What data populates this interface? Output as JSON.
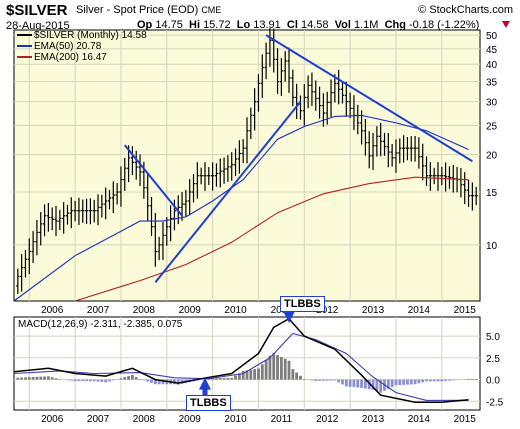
{
  "header": {
    "symbol": "$SILVER",
    "description": "Silver - Spot Price (EOD)",
    "exchange": "CME",
    "watermark": "© StockCharts.com",
    "date": "28-Aug-2015",
    "open_label": "Op",
    "open": "14.75",
    "high_label": "Hi",
    "high": "15.72",
    "low_label": "Lo",
    "low": "13.91",
    "close_label": "Cl",
    "close": "14.58",
    "volume_label": "Vol",
    "volume": "1.1M",
    "change_label": "Chg",
    "change": "-0.18 (-1.22%)",
    "change_arrow": "down-arrow-icon"
  },
  "colors": {
    "background_main": "#fbfbd9",
    "background_macd": "#ffffff",
    "grid": "#d4d4bd",
    "price_bars": "#000000",
    "ema50": "#1a2fbd",
    "ema200": "#b22222",
    "trendlines": "#1f3fd1",
    "macd_line": "#000000",
    "signal_line": "#3b3fb0",
    "histogram": "#8b8fcf",
    "histogram_positive": "#7d7d7d"
  },
  "chart_data": [
    {
      "type": "ohlc",
      "title": "$SILVER Silver - Spot Price (EOD) CME",
      "period": "Monthly",
      "scale": "log",
      "ylim": [
        6.5,
        52
      ],
      "y_ticks": [
        10,
        15,
        20,
        25,
        30,
        35,
        40,
        45,
        50
      ],
      "x_ticks": [
        "2006",
        "2007",
        "2008",
        "2009",
        "2010",
        "2011",
        "2012",
        "2013",
        "2014",
        "2015"
      ],
      "grid": true,
      "legend": [
        {
          "name": "$SILVER (Monthly) 14.58",
          "color": "#000000"
        },
        {
          "name": "EMA(50) 20.78",
          "color": "#1a2fbd"
        },
        {
          "name": "EMA(200) 16.47",
          "color": "#b22222"
        }
      ],
      "close_anchors": [
        [
          "2005-09",
          7.3
        ],
        [
          "2006-01",
          9.5
        ],
        [
          "2006-05",
          12.5
        ],
        [
          "2006-08",
          12.0
        ],
        [
          "2006-12",
          13.0
        ],
        [
          "2007-06",
          13.0
        ],
        [
          "2007-12",
          15.0
        ],
        [
          "2008-03",
          19.5
        ],
        [
          "2008-06",
          17.5
        ],
        [
          "2008-10",
          9.5
        ],
        [
          "2008-11",
          10.0
        ],
        [
          "2009-03",
          13.0
        ],
        [
          "2009-06",
          14.0
        ],
        [
          "2009-09",
          17.0
        ],
        [
          "2010-01",
          17.0
        ],
        [
          "2010-06",
          18.5
        ],
        [
          "2010-09",
          21.0
        ],
        [
          "2010-12",
          30.0
        ],
        [
          "2011-04",
          48.0
        ],
        [
          "2011-06",
          35.0
        ],
        [
          "2011-08",
          41.0
        ],
        [
          "2011-10",
          31.0
        ],
        [
          "2011-12",
          28.0
        ],
        [
          "2012-02",
          34.0
        ],
        [
          "2012-06",
          27.5
        ],
        [
          "2012-09",
          34.5
        ],
        [
          "2012-12",
          30.0
        ],
        [
          "2013-04",
          24.0
        ],
        [
          "2013-06",
          19.8
        ],
        [
          "2013-08",
          23.0
        ],
        [
          "2013-12",
          19.5
        ],
        [
          "2014-02",
          21.0
        ],
        [
          "2014-06",
          21.0
        ],
        [
          "2014-09",
          17.0
        ],
        [
          "2015-01",
          17.0
        ],
        [
          "2015-05",
          16.5
        ],
        [
          "2015-08",
          14.58
        ]
      ],
      "ema50_anchors": [
        [
          "2005-09",
          6.5
        ],
        [
          "2007-01",
          9.2
        ],
        [
          "2008-06",
          12.0
        ],
        [
          "2008-12",
          12.0
        ],
        [
          "2009-06",
          12.4
        ],
        [
          "2010-01",
          14.0
        ],
        [
          "2010-09",
          16.5
        ],
        [
          "2011-06",
          22.5
        ],
        [
          "2012-01",
          24.8
        ],
        [
          "2012-09",
          26.8
        ],
        [
          "2013-04",
          27.0
        ],
        [
          "2014-01",
          25.5
        ],
        [
          "2014-09",
          24.0
        ],
        [
          "2015-08",
          20.78
        ]
      ],
      "ema200_anchors": [
        [
          "2007-01",
          6.5
        ],
        [
          "2008-06",
          7.6
        ],
        [
          "2009-06",
          8.6
        ],
        [
          "2010-06",
          10.2
        ],
        [
          "2011-06",
          12.8
        ],
        [
          "2012-06",
          14.8
        ],
        [
          "2013-06",
          16.0
        ],
        [
          "2014-06",
          16.8
        ],
        [
          "2015-08",
          16.47
        ]
      ],
      "trendlines": [
        {
          "from": [
            "2008-02",
            21.5
          ],
          "to": [
            "2009-05",
            12.5
          ]
        },
        {
          "from": [
            "2008-10",
            7.5
          ],
          "to": [
            "2011-12",
            30.0
          ]
        },
        {
          "from": [
            "2011-03",
            50.0
          ],
          "to": [
            "2015-09",
            19.0
          ]
        }
      ]
    },
    {
      "type": "macd",
      "title": "MACD(12,26,9)",
      "values_label": "-2.311, -2.385, 0.075",
      "parameters": [
        12,
        26,
        9
      ],
      "macd": -2.311,
      "signal": -2.385,
      "histogram": 0.075,
      "ylim": [
        -3.5,
        7.2
      ],
      "y_ticks": [
        -2.5,
        0.0,
        2.5,
        5.0
      ],
      "y_tick_labels": [
        "-2.5",
        "0.0",
        "2.5",
        "5.0"
      ],
      "x_ticks": [
        "2006",
        "2007",
        "2008",
        "2009",
        "2010",
        "2011",
        "2012",
        "2013",
        "2014",
        "2015"
      ],
      "macd_anchors": [
        [
          "2005-09",
          0.9
        ],
        [
          "2006-06",
          1.3
        ],
        [
          "2007-01",
          0.7
        ],
        [
          "2007-09",
          0.4
        ],
        [
          "2008-04",
          1.3
        ],
        [
          "2008-10",
          0.0
        ],
        [
          "2009-04",
          -0.4
        ],
        [
          "2009-10",
          0.1
        ],
        [
          "2010-06",
          0.7
        ],
        [
          "2011-01",
          3.0
        ],
        [
          "2011-05",
          6.0
        ],
        [
          "2011-09",
          7.0
        ],
        [
          "2012-01",
          5.0
        ],
        [
          "2012-09",
          3.5
        ],
        [
          "2013-04",
          0.5
        ],
        [
          "2013-09",
          -1.8
        ],
        [
          "2014-06",
          -2.6
        ],
        [
          "2015-01",
          -2.6
        ],
        [
          "2015-08",
          -2.311
        ]
      ],
      "signal_anchors": [
        [
          "2005-09",
          0.7
        ],
        [
          "2006-09",
          1.0
        ],
        [
          "2007-06",
          0.7
        ],
        [
          "2008-06",
          0.8
        ],
        [
          "2009-03",
          0.2
        ],
        [
          "2009-12",
          0.1
        ],
        [
          "2010-09",
          0.7
        ],
        [
          "2011-04",
          2.5
        ],
        [
          "2011-10",
          5.3
        ],
        [
          "2012-04",
          4.6
        ],
        [
          "2012-12",
          3.0
        ],
        [
          "2013-07",
          0.3
        ],
        [
          "2014-01",
          -1.5
        ],
        [
          "2014-09",
          -2.4
        ],
        [
          "2015-08",
          -2.385
        ]
      ],
      "annotations": [
        "TLBBS",
        "TLBBS"
      ]
    }
  ]
}
